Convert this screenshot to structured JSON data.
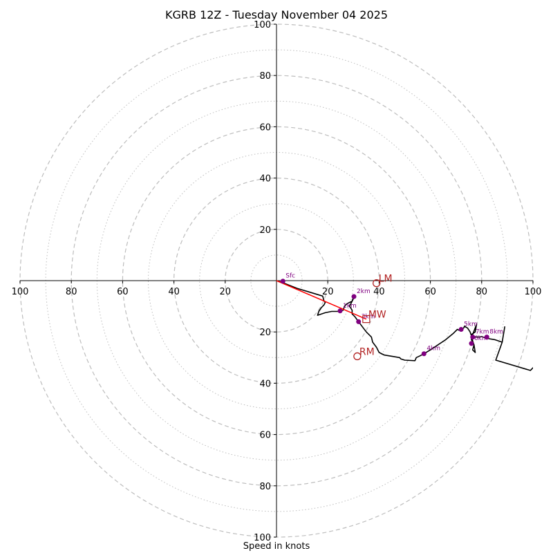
{
  "chart_data": {
    "type": "hodograph",
    "title": "KGRB 12Z - Tuesday November 04 2025",
    "xlabel": "Speed in knots",
    "range": [
      -100,
      100
    ],
    "rings_major": [
      20,
      40,
      60,
      80,
      100
    ],
    "rings_minor": [
      10,
      30,
      50,
      70,
      90
    ],
    "tick_values": [
      20,
      40,
      60,
      80,
      100
    ],
    "tick_labels": {
      "x_left": [
        "100",
        "80",
        "60",
        "40",
        "20"
      ],
      "x_right": [
        "20",
        "40",
        "60",
        "80",
        "100"
      ],
      "y_up": [
        "20",
        "40",
        "60",
        "80",
        "100"
      ],
      "y_down": [
        "20",
        "40",
        "60",
        "80",
        "100"
      ]
    },
    "hodograph_trace": [
      [
        0,
        0
      ],
      [
        3,
        -1
      ],
      [
        8,
        -3
      ],
      [
        13,
        -4.5
      ],
      [
        18,
        -6
      ],
      [
        18.5,
        -7.8
      ],
      [
        19,
        -8.5
      ],
      [
        18.5,
        -9.5
      ],
      [
        17.5,
        -10.5
      ],
      [
        16.5,
        -12
      ],
      [
        16,
        -13.5
      ],
      [
        19,
        -12.5
      ],
      [
        21.5,
        -12
      ],
      [
        24.5,
        -12
      ],
      [
        26,
        -11.5
      ],
      [
        26.5,
        -10
      ],
      [
        27.5,
        -9
      ],
      [
        29.5,
        -8
      ],
      [
        30,
        -6.5
      ],
      [
        30.5,
        -6
      ],
      [
        29.5,
        -8
      ],
      [
        28.5,
        -10
      ],
      [
        29.5,
        -11.5
      ],
      [
        29.5,
        -13
      ],
      [
        30.5,
        -14
      ],
      [
        32,
        -16
      ],
      [
        33.5,
        -18
      ],
      [
        35,
        -20
      ],
      [
        37,
        -22
      ],
      [
        37.5,
        -24
      ],
      [
        39,
        -26
      ],
      [
        40,
        -28
      ],
      [
        42,
        -29
      ],
      [
        45,
        -29.5
      ],
      [
        48,
        -30
      ],
      [
        48.5,
        -30.5
      ],
      [
        50,
        -31
      ],
      [
        54,
        -31.2
      ],
      [
        54.5,
        -30
      ],
      [
        56,
        -29.3
      ],
      [
        57.5,
        -28.5
      ],
      [
        60,
        -27
      ],
      [
        63,
        -25
      ],
      [
        66,
        -23
      ],
      [
        69,
        -20.5
      ],
      [
        70.5,
        -19
      ],
      [
        71.5,
        -19.5
      ],
      [
        72,
        -19
      ],
      [
        73,
        -18.5
      ],
      [
        73.3,
        -17.8
      ],
      [
        74.5,
        -18.5
      ],
      [
        75.5,
        -20
      ],
      [
        76,
        -21.5
      ],
      [
        76.5,
        -23.5
      ],
      [
        77,
        -25
      ],
      [
        77.5,
        -28
      ],
      [
        76.5,
        -27
      ],
      [
        77,
        -25
      ],
      [
        76,
        -23
      ],
      [
        76,
        -21
      ],
      [
        77.5,
        -20
      ],
      [
        78,
        -17
      ],
      [
        76.5,
        -21
      ],
      [
        77,
        -22
      ],
      [
        79,
        -22
      ],
      [
        80,
        -21.8
      ],
      [
        82,
        -22.5
      ],
      [
        85,
        -23
      ],
      [
        88,
        -24
      ],
      [
        88.5,
        -21
      ],
      [
        89,
        -18
      ],
      [
        88,
        -24
      ],
      [
        85.5,
        -31
      ],
      [
        99,
        -35
      ],
      [
        100,
        -34
      ],
      [
        101.5,
        -32.5
      ]
    ],
    "height_markers": [
      {
        "label": "Sfc",
        "u": 2.5,
        "v": -0.2
      },
      {
        "label": "1km",
        "u": 24.8,
        "v": -11.8
      },
      {
        "label": "2km",
        "u": 30.2,
        "v": -6.2
      },
      {
        "label": "3km",
        "u": 32,
        "v": -16
      },
      {
        "label": "4km",
        "u": 57.5,
        "v": -28.5
      },
      {
        "label": "5km",
        "u": 72,
        "v": -19
      },
      {
        "label": "6km",
        "u": 76,
        "v": -24.5
      },
      {
        "label": "7km",
        "u": 76.5,
        "v": -22
      },
      {
        "label": "8km",
        "u": 82,
        "v": -22
      }
    ],
    "storm_motion": [
      {
        "label": "LM",
        "u": 39,
        "v": -1
      },
      {
        "label": "MW",
        "u": 35,
        "v": -15
      },
      {
        "label": "RM",
        "u": 31.5,
        "v": -29.5
      }
    ],
    "bunkers_vector": {
      "from": [
        0,
        0
      ],
      "to": [
        35,
        -15
      ]
    },
    "colors": {
      "ring": "#bdbdbd",
      "axis": "#000000",
      "trace": "#000000",
      "marker": "#800080",
      "storm": "#b22222",
      "vector": "#ff0000"
    }
  }
}
